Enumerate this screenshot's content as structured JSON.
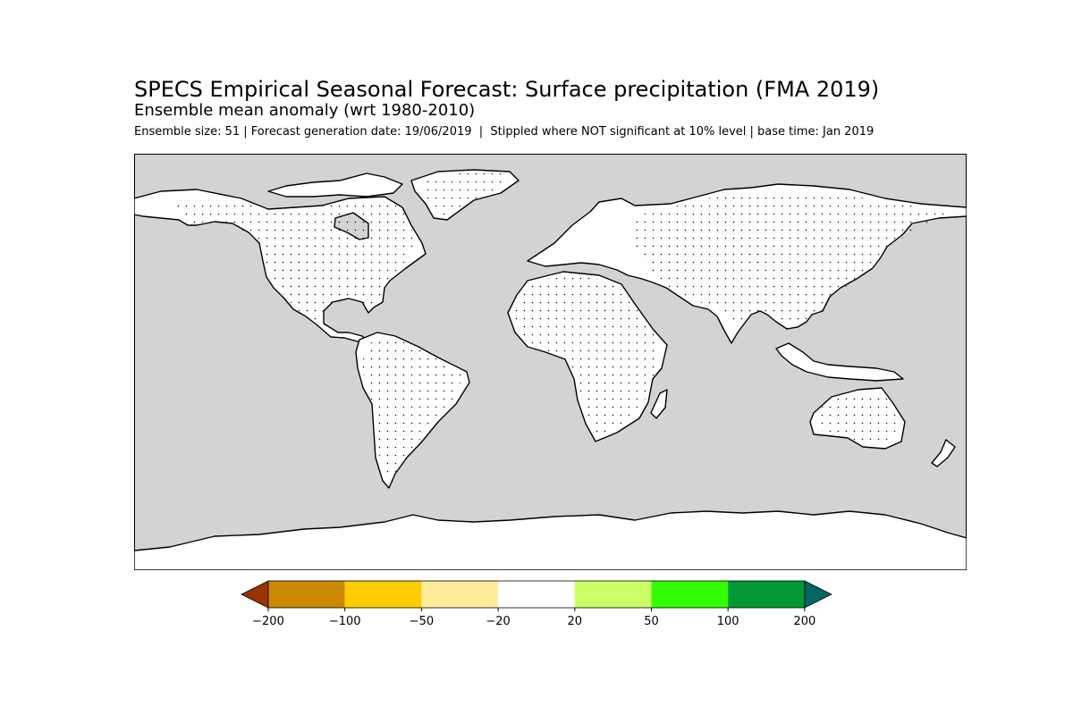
{
  "header": {
    "title": "SPECS Empirical Seasonal Forecast: Surface precipitation (FMA 2019)",
    "subtitle": "Ensemble mean anomaly (wrt 1980-2010)",
    "info": "Ensemble size: 51 | Forecast generation date: 19/06/2019  |  Stippled where NOT significant at 10% level | base time: Jan 2019"
  },
  "map": {
    "ocean_color": "#d3d3d3",
    "land_color": "#ffffff",
    "coastline_color": "#000000",
    "stipple": "dots on land"
  },
  "colorbar": {
    "ticks": [
      "−200",
      "−100",
      "−50",
      "−20",
      "20",
      "50",
      "100",
      "200"
    ],
    "bins": [
      {
        "color": "#cc8800"
      },
      {
        "color": "#ffcc00"
      },
      {
        "color": "#ffec99"
      },
      {
        "color": "#ffffff"
      },
      {
        "color": "#ccff66"
      },
      {
        "color": "#33ff00"
      },
      {
        "color": "#009933"
      }
    ],
    "extend_low_color": "#993300",
    "extend_high_color": "#006666"
  }
}
